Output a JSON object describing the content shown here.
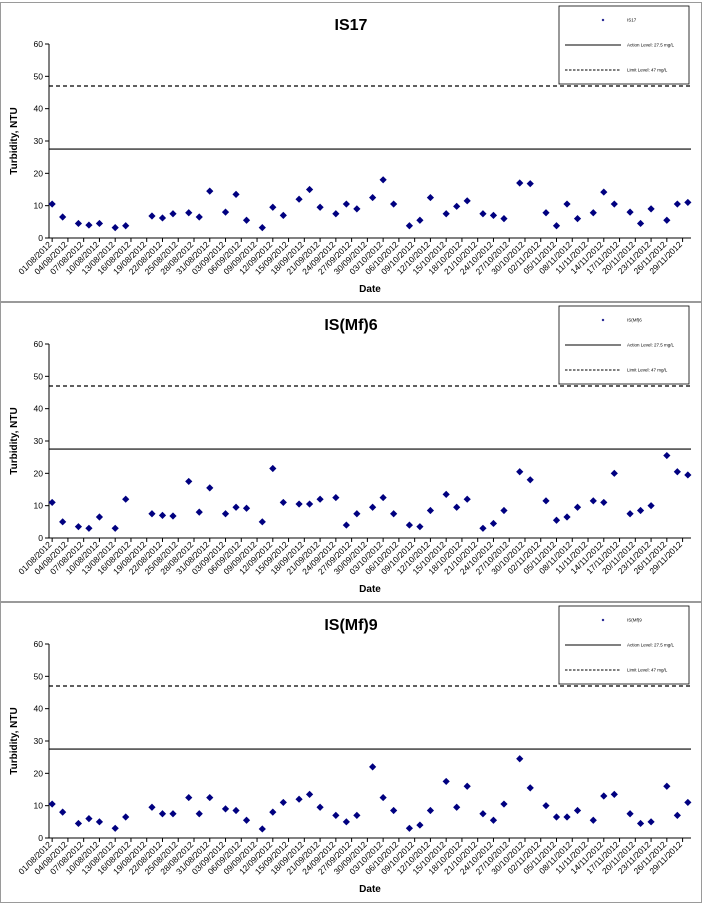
{
  "chart_data": [
    {
      "type": "scatter",
      "title": "IS17",
      "xlabel": "Date",
      "ylabel": "Turbidity, NTU",
      "ylim": [
        0,
        60
      ],
      "yticks": [
        "0",
        "10",
        "20",
        "30",
        "40",
        "50",
        "60"
      ],
      "x_tick_labels": [
        "01/08/2012",
        "04/08/2012",
        "07/08/2012",
        "10/08/2012",
        "13/08/2012",
        "16/08/2012",
        "19/08/2012",
        "22/08/2012",
        "25/08/2012",
        "28/08/2012",
        "31/08/2012",
        "03/09/2012",
        "06/09/2012",
        "09/09/2012",
        "12/09/2012",
        "15/09/2012",
        "18/09/2012",
        "21/09/2012",
        "24/09/2012",
        "27/09/2012",
        "30/09/2012",
        "03/10/2012",
        "06/10/2012",
        "09/10/2012",
        "12/10/2012",
        "15/10/2012",
        "18/10/2012",
        "21/10/2012",
        "24/10/2012",
        "27/10/2012",
        "30/10/2012",
        "02/11/2012",
        "05/11/2012",
        "08/11/2012",
        "11/11/2012",
        "14/11/2012",
        "17/11/2012",
        "20/11/2012",
        "23/11/2012",
        "26/11/2012",
        "29/11/2012"
      ],
      "series": [
        {
          "name": "IS17",
          "marker": "diamond",
          "color": "#000080",
          "points": [
            {
              "x": "01/08/2012",
              "y": 10.5
            },
            {
              "x": "03/08/2012",
              "y": 6.5
            },
            {
              "x": "06/08/2012",
              "y": 4.5
            },
            {
              "x": "08/08/2012",
              "y": 4.0
            },
            {
              "x": "10/08/2012",
              "y": 4.5
            },
            {
              "x": "13/08/2012",
              "y": 3.2
            },
            {
              "x": "15/08/2012",
              "y": 3.8
            },
            {
              "x": "20/08/2012",
              "y": 6.8
            },
            {
              "x": "22/08/2012",
              "y": 6.2
            },
            {
              "x": "24/08/2012",
              "y": 7.5
            },
            {
              "x": "27/08/2012",
              "y": 7.8
            },
            {
              "x": "29/08/2012",
              "y": 6.5
            },
            {
              "x": "31/08/2012",
              "y": 14.5
            },
            {
              "x": "03/09/2012",
              "y": 8.0
            },
            {
              "x": "05/09/2012",
              "y": 13.5
            },
            {
              "x": "07/09/2012",
              "y": 5.5
            },
            {
              "x": "10/09/2012",
              "y": 3.2
            },
            {
              "x": "12/09/2012",
              "y": 9.5
            },
            {
              "x": "14/09/2012",
              "y": 7.0
            },
            {
              "x": "17/09/2012",
              "y": 12.0
            },
            {
              "x": "19/09/2012",
              "y": 15.0
            },
            {
              "x": "21/09/2012",
              "y": 9.5
            },
            {
              "x": "24/09/2012",
              "y": 7.5
            },
            {
              "x": "26/09/2012",
              "y": 10.5
            },
            {
              "x": "28/09/2012",
              "y": 9.0
            },
            {
              "x": "01/10/2012",
              "y": 12.5
            },
            {
              "x": "03/10/2012",
              "y": 18.0
            },
            {
              "x": "05/10/2012",
              "y": 10.5
            },
            {
              "x": "08/10/2012",
              "y": 3.8
            },
            {
              "x": "10/10/2012",
              "y": 5.5
            },
            {
              "x": "12/10/2012",
              "y": 12.5
            },
            {
              "x": "15/10/2012",
              "y": 7.5
            },
            {
              "x": "17/10/2012",
              "y": 9.8
            },
            {
              "x": "19/10/2012",
              "y": 11.5
            },
            {
              "x": "22/10/2012",
              "y": 7.5
            },
            {
              "x": "24/10/2012",
              "y": 7.0
            },
            {
              "x": "26/10/2012",
              "y": 6.0
            },
            {
              "x": "29/10/2012",
              "y": 17.0
            },
            {
              "x": "31/10/2012",
              "y": 16.8
            },
            {
              "x": "03/11/2012",
              "y": 7.8
            },
            {
              "x": "05/11/2012",
              "y": 3.8
            },
            {
              "x": "07/11/2012",
              "y": 10.5
            },
            {
              "x": "09/11/2012",
              "y": 6.0
            },
            {
              "x": "12/11/2012",
              "y": 7.8
            },
            {
              "x": "14/11/2012",
              "y": 14.2
            },
            {
              "x": "16/11/2012",
              "y": 10.5
            },
            {
              "x": "19/11/2012",
              "y": 8.0
            },
            {
              "x": "21/11/2012",
              "y": 4.5
            },
            {
              "x": "23/11/2012",
              "y": 9.0
            },
            {
              "x": "26/11/2012",
              "y": 5.5
            },
            {
              "x": "28/11/2012",
              "y": 10.5
            },
            {
              "x": "30/11/2012",
              "y": 11.0
            }
          ]
        }
      ],
      "action_level": 27.5,
      "limit_level": 47,
      "legend": {
        "placement": "top-right",
        "entries": [
          {
            "label": "IS17",
            "style": "marker"
          },
          {
            "label": "Action Level: 27.5 mg/L",
            "style": "solid"
          },
          {
            "label": "Limit Level: 47 mg/L",
            "style": "dashed"
          }
        ]
      }
    },
    {
      "type": "scatter",
      "title": "IS(Mf)6",
      "xlabel": "Date",
      "ylabel": "Turbidity, NTU",
      "ylim": [
        0,
        60
      ],
      "yticks": [
        "0",
        "10",
        "20",
        "30",
        "40",
        "50",
        "60"
      ],
      "x_tick_labels": [
        "01/08/2012",
        "04/08/2012",
        "07/08/2012",
        "10/08/2012",
        "13/08/2012",
        "16/08/2012",
        "19/08/2012",
        "22/08/2012",
        "25/08/2012",
        "28/08/2012",
        "31/08/2012",
        "03/09/2012",
        "06/09/2012",
        "09/09/2012",
        "12/09/2012",
        "15/09/2012",
        "18/09/2012",
        "21/09/2012",
        "24/09/2012",
        "27/09/2012",
        "30/09/2012",
        "03/10/2012",
        "06/10/2012",
        "09/10/2012",
        "12/10/2012",
        "15/10/2012",
        "18/10/2012",
        "21/10/2012",
        "24/10/2012",
        "27/10/2012",
        "30/10/2012",
        "02/11/2012",
        "05/11/2012",
        "08/11/2012",
        "11/11/2012",
        "14/11/2012",
        "17/11/2012",
        "20/11/2012",
        "23/11/2012",
        "26/11/2012",
        "29/11/2012"
      ],
      "series": [
        {
          "name": "IS(Mf)6",
          "marker": "diamond",
          "color": "#000080",
          "points": [
            {
              "x": "01/08/2012",
              "y": 11.0
            },
            {
              "x": "03/08/2012",
              "y": 5.0
            },
            {
              "x": "06/08/2012",
              "y": 3.5
            },
            {
              "x": "08/08/2012",
              "y": 3.0
            },
            {
              "x": "10/08/2012",
              "y": 6.5
            },
            {
              "x": "13/08/2012",
              "y": 3.0
            },
            {
              "x": "15/08/2012",
              "y": 12.0
            },
            {
              "x": "20/08/2012",
              "y": 7.5
            },
            {
              "x": "22/08/2012",
              "y": 7.0
            },
            {
              "x": "24/08/2012",
              "y": 6.8
            },
            {
              "x": "27/08/2012",
              "y": 17.5
            },
            {
              "x": "29/08/2012",
              "y": 8.0
            },
            {
              "x": "31/08/2012",
              "y": 15.5
            },
            {
              "x": "03/09/2012",
              "y": 7.5
            },
            {
              "x": "05/09/2012",
              "y": 9.5
            },
            {
              "x": "07/09/2012",
              "y": 9.2
            },
            {
              "x": "10/09/2012",
              "y": 5.0
            },
            {
              "x": "12/09/2012",
              "y": 21.5
            },
            {
              "x": "14/09/2012",
              "y": 11.0
            },
            {
              "x": "17/09/2012",
              "y": 10.5
            },
            {
              "x": "19/09/2012",
              "y": 10.5
            },
            {
              "x": "21/09/2012",
              "y": 12.0
            },
            {
              "x": "24/09/2012",
              "y": 12.5
            },
            {
              "x": "26/09/2012",
              "y": 4.0
            },
            {
              "x": "28/09/2012",
              "y": 7.5
            },
            {
              "x": "01/10/2012",
              "y": 9.5
            },
            {
              "x": "03/10/2012",
              "y": 12.5
            },
            {
              "x": "05/10/2012",
              "y": 7.5
            },
            {
              "x": "08/10/2012",
              "y": 4.0
            },
            {
              "x": "10/10/2012",
              "y": 3.5
            },
            {
              "x": "12/10/2012",
              "y": 8.5
            },
            {
              "x": "15/10/2012",
              "y": 13.5
            },
            {
              "x": "17/10/2012",
              "y": 9.5
            },
            {
              "x": "19/10/2012",
              "y": 12.0
            },
            {
              "x": "22/10/2012",
              "y": 3.0
            },
            {
              "x": "24/10/2012",
              "y": 4.5
            },
            {
              "x": "26/10/2012",
              "y": 8.5
            },
            {
              "x": "29/10/2012",
              "y": 20.5
            },
            {
              "x": "31/10/2012",
              "y": 18.0
            },
            {
              "x": "03/11/2012",
              "y": 11.5
            },
            {
              "x": "05/11/2012",
              "y": 5.5
            },
            {
              "x": "07/11/2012",
              "y": 6.5
            },
            {
              "x": "09/11/2012",
              "y": 9.5
            },
            {
              "x": "12/11/2012",
              "y": 11.5
            },
            {
              "x": "14/11/2012",
              "y": 11.0
            },
            {
              "x": "16/11/2012",
              "y": 20.0
            },
            {
              "x": "19/11/2012",
              "y": 7.5
            },
            {
              "x": "21/11/2012",
              "y": 8.5
            },
            {
              "x": "23/11/2012",
              "y": 10.0
            },
            {
              "x": "26/11/2012",
              "y": 25.5
            },
            {
              "x": "28/11/2012",
              "y": 20.5
            },
            {
              "x": "30/11/2012",
              "y": 19.5
            }
          ]
        }
      ],
      "action_level": 27.5,
      "limit_level": 47,
      "legend": {
        "placement": "top-right",
        "entries": [
          {
            "label": "IS(Mf)6",
            "style": "marker"
          },
          {
            "label": "Action Level: 27.5 mg/L",
            "style": "solid"
          },
          {
            "label": "Limit Level: 47 mg/L",
            "style": "dashed"
          }
        ]
      }
    },
    {
      "type": "scatter",
      "title": "IS(Mf)9",
      "xlabel": "Date",
      "ylabel": "Turbidity, NTU",
      "ylim": [
        0,
        60
      ],
      "yticks": [
        "0",
        "10",
        "20",
        "30",
        "40",
        "50",
        "60"
      ],
      "x_tick_labels": [
        "01/08/2012",
        "04/08/2012",
        "07/08/2012",
        "10/08/2012",
        "13/08/2012",
        "16/08/2012",
        "19/08/2012",
        "22/08/2012",
        "25/08/2012",
        "28/08/2012",
        "31/08/2012",
        "03/09/2012",
        "06/09/2012",
        "09/09/2012",
        "12/09/2012",
        "15/09/2012",
        "18/09/2012",
        "21/09/2012",
        "24/09/2012",
        "27/09/2012",
        "30/09/2012",
        "03/10/2012",
        "06/10/2012",
        "09/10/2012",
        "12/10/2012",
        "15/10/2012",
        "18/10/2012",
        "21/10/2012",
        "24/10/2012",
        "27/10/2012",
        "30/10/2012",
        "02/11/2012",
        "05/11/2012",
        "08/11/2012",
        "11/11/2012",
        "14/11/2012",
        "17/11/2012",
        "20/11/2012",
        "23/11/2012",
        "26/11/2012",
        "29/11/2012"
      ],
      "series": [
        {
          "name": "IS(Mf)9",
          "marker": "diamond",
          "color": "#000080",
          "points": [
            {
              "x": "01/08/2012",
              "y": 10.5
            },
            {
              "x": "03/08/2012",
              "y": 8.0
            },
            {
              "x": "06/08/2012",
              "y": 4.5
            },
            {
              "x": "08/08/2012",
              "y": 6.0
            },
            {
              "x": "10/08/2012",
              "y": 5.0
            },
            {
              "x": "13/08/2012",
              "y": 3.0
            },
            {
              "x": "15/08/2012",
              "y": 6.5
            },
            {
              "x": "20/08/2012",
              "y": 9.5
            },
            {
              "x": "22/08/2012",
              "y": 7.5
            },
            {
              "x": "24/08/2012",
              "y": 7.5
            },
            {
              "x": "27/08/2012",
              "y": 12.5
            },
            {
              "x": "29/08/2012",
              "y": 7.5
            },
            {
              "x": "31/08/2012",
              "y": 12.5
            },
            {
              "x": "03/09/2012",
              "y": 9.0
            },
            {
              "x": "05/09/2012",
              "y": 8.5
            },
            {
              "x": "07/09/2012",
              "y": 5.5
            },
            {
              "x": "10/09/2012",
              "y": 2.8
            },
            {
              "x": "12/09/2012",
              "y": 8.0
            },
            {
              "x": "14/09/2012",
              "y": 11.0
            },
            {
              "x": "17/09/2012",
              "y": 12.0
            },
            {
              "x": "19/09/2012",
              "y": 13.5
            },
            {
              "x": "21/09/2012",
              "y": 9.5
            },
            {
              "x": "24/09/2012",
              "y": 7.0
            },
            {
              "x": "26/09/2012",
              "y": 5.0
            },
            {
              "x": "28/09/2012",
              "y": 7.0
            },
            {
              "x": "01/10/2012",
              "y": 22.0
            },
            {
              "x": "03/10/2012",
              "y": 12.5
            },
            {
              "x": "05/10/2012",
              "y": 8.5
            },
            {
              "x": "08/10/2012",
              "y": 3.0
            },
            {
              "x": "10/10/2012",
              "y": 4.0
            },
            {
              "x": "12/10/2012",
              "y": 8.5
            },
            {
              "x": "15/10/2012",
              "y": 17.5
            },
            {
              "x": "17/10/2012",
              "y": 9.5
            },
            {
              "x": "19/10/2012",
              "y": 16.0
            },
            {
              "x": "22/10/2012",
              "y": 7.5
            },
            {
              "x": "24/10/2012",
              "y": 5.5
            },
            {
              "x": "26/10/2012",
              "y": 10.5
            },
            {
              "x": "29/10/2012",
              "y": 24.5
            },
            {
              "x": "31/10/2012",
              "y": 15.5
            },
            {
              "x": "03/11/2012",
              "y": 10.0
            },
            {
              "x": "05/11/2012",
              "y": 6.5
            },
            {
              "x": "07/11/2012",
              "y": 6.5
            },
            {
              "x": "09/11/2012",
              "y": 8.5
            },
            {
              "x": "12/11/2012",
              "y": 5.5
            },
            {
              "x": "14/11/2012",
              "y": 13.0
            },
            {
              "x": "16/11/2012",
              "y": 13.5
            },
            {
              "x": "19/11/2012",
              "y": 7.5
            },
            {
              "x": "21/11/2012",
              "y": 4.5
            },
            {
              "x": "23/11/2012",
              "y": 5.0
            },
            {
              "x": "26/11/2012",
              "y": 16.0
            },
            {
              "x": "28/11/2012",
              "y": 7.0
            },
            {
              "x": "30/11/2012",
              "y": 11.0
            }
          ]
        }
      ],
      "action_level": 27.5,
      "limit_level": 47,
      "legend": {
        "placement": "top-right",
        "entries": [
          {
            "label": "IS(Mf)9",
            "style": "marker"
          },
          {
            "label": "Action Level: 27.5 mg/L",
            "style": "solid"
          },
          {
            "label": "Limit Level: 47 mg/L",
            "style": "dashed"
          }
        ]
      }
    }
  ]
}
